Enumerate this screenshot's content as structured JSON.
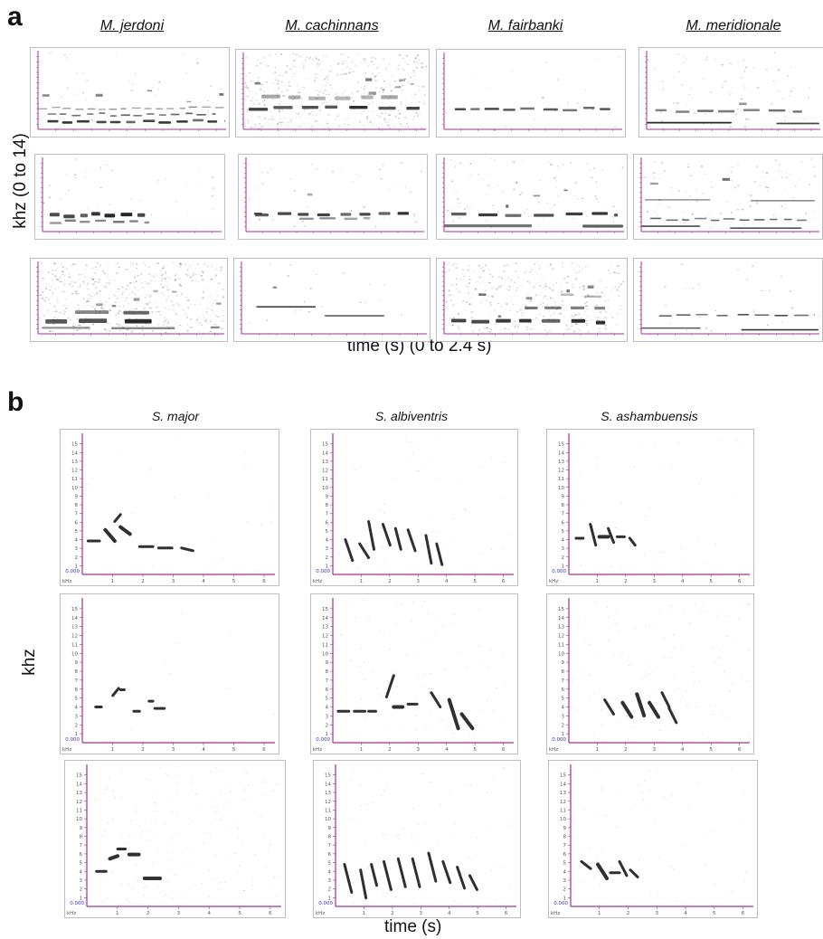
{
  "panel_a": {
    "letter": "a",
    "species": [
      "M. jerdoni",
      "M. cachinnans",
      "M. fairbanki",
      "M. meridionale"
    ],
    "y_axis_label": "khz (0 to 14)",
    "x_axis_label": "time (s) (0 to 2.4 s)"
  },
  "panel_b": {
    "letter": "b",
    "species": [
      "S. major",
      "S. albiventris",
      "S. ashambuensis"
    ],
    "y_axis_label": "khz",
    "x_axis_label": "time (s)",
    "y_ticks": [
      "1",
      "2",
      "3",
      "4",
      "5",
      "6",
      "7",
      "8",
      "9",
      "10",
      "11",
      "12",
      "13",
      "14",
      "15"
    ],
    "x_ticks": [
      "1",
      "2",
      "3",
      "4",
      "5",
      "6"
    ],
    "origin_label": "0.000",
    "unit_label": "kHz"
  },
  "colors": {
    "axis": "#a2338f",
    "zero_label": "#3333cc",
    "frame": "#bdbdbd",
    "ink": "#1a1a1a"
  }
}
